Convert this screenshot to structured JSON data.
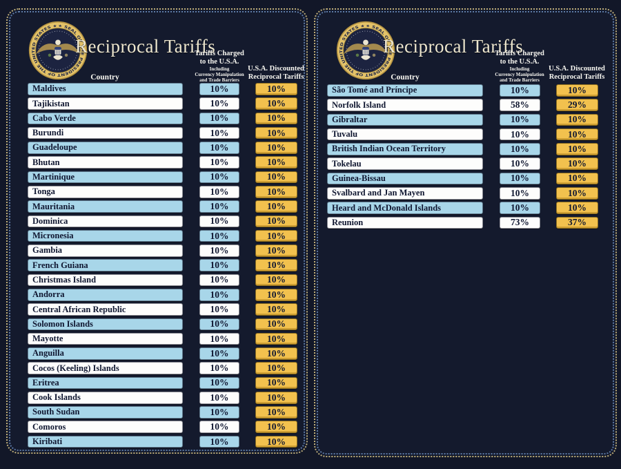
{
  "header": {
    "country": "Country",
    "charged": [
      "Tariffs Charged",
      "to the U.S.A."
    ],
    "charged_fine": [
      "Including",
      "Currency Manipulation",
      "and Trade Barriers"
    ],
    "discounted": [
      "U.S.A. Discounted",
      "Reciprocal Tariffs"
    ]
  },
  "seal": {
    "ring_text": "★ SEAL OF THE PRESIDENT OF THE UNITED STATES ★"
  },
  "colors": {
    "background_navy": "#121728",
    "row_blue": "#a8d6e9",
    "row_white": "#fdfdfc",
    "discounted_gold": "#f2c14e",
    "title_cream": "#eee7cf",
    "row_text_navy": "#0f1630",
    "border_dot_tan": "#bfae78",
    "border_dot_blue": "#5d7aa6"
  },
  "chart_data": [
    {
      "type": "table",
      "title": "Reciprocal Tariffs",
      "columns": [
        "Country",
        "Tariffs Charged to the U.S.A. Including Currency Manipulation and Trade Barriers",
        "U.S.A. Discounted Reciprocal Tariffs"
      ],
      "rows": [
        [
          "Maldives",
          "10%",
          "10%"
        ],
        [
          "Tajikistan",
          "10%",
          "10%"
        ],
        [
          "Cabo Verde",
          "10%",
          "10%"
        ],
        [
          "Burundi",
          "10%",
          "10%"
        ],
        [
          "Guadeloupe",
          "10%",
          "10%"
        ],
        [
          "Bhutan",
          "10%",
          "10%"
        ],
        [
          "Martinique",
          "10%",
          "10%"
        ],
        [
          "Tonga",
          "10%",
          "10%"
        ],
        [
          "Mauritania",
          "10%",
          "10%"
        ],
        [
          "Dominica",
          "10%",
          "10%"
        ],
        [
          "Micronesia",
          "10%",
          "10%"
        ],
        [
          "Gambia",
          "10%",
          "10%"
        ],
        [
          "French Guiana",
          "10%",
          "10%"
        ],
        [
          "Christmas Island",
          "10%",
          "10%"
        ],
        [
          "Andorra",
          "10%",
          "10%"
        ],
        [
          "Central African Republic",
          "10%",
          "10%"
        ],
        [
          "Solomon Islands",
          "10%",
          "10%"
        ],
        [
          "Mayotte",
          "10%",
          "10%"
        ],
        [
          "Anguilla",
          "10%",
          "10%"
        ],
        [
          "Cocos (Keeling) Islands",
          "10%",
          "10%"
        ],
        [
          "Eritrea",
          "10%",
          "10%"
        ],
        [
          "Cook Islands",
          "10%",
          "10%"
        ],
        [
          "South Sudan",
          "10%",
          "10%"
        ],
        [
          "Comoros",
          "10%",
          "10%"
        ],
        [
          "Kiribati",
          "10%",
          "10%"
        ]
      ]
    },
    {
      "type": "table",
      "title": "Reciprocal Tariffs",
      "columns": [
        "Country",
        "Tariffs Charged to the U.S.A. Including Currency Manipulation and Trade Barriers",
        "U.S.A. Discounted Reciprocal Tariffs"
      ],
      "rows": [
        [
          "São Tomé and Príncipe",
          "10%",
          "10%"
        ],
        [
          "Norfolk Island",
          "58%",
          "29%"
        ],
        [
          "Gibraltar",
          "10%",
          "10%"
        ],
        [
          "Tuvalu",
          "10%",
          "10%"
        ],
        [
          "British Indian Ocean Territory",
          "10%",
          "10%"
        ],
        [
          "Tokelau",
          "10%",
          "10%"
        ],
        [
          "Guinea-Bissau",
          "10%",
          "10%"
        ],
        [
          "Svalbard and Jan Mayen",
          "10%",
          "10%"
        ],
        [
          "Heard and McDonald Islands",
          "10%",
          "10%"
        ],
        [
          "Reunion",
          "73%",
          "37%"
        ]
      ]
    }
  ]
}
